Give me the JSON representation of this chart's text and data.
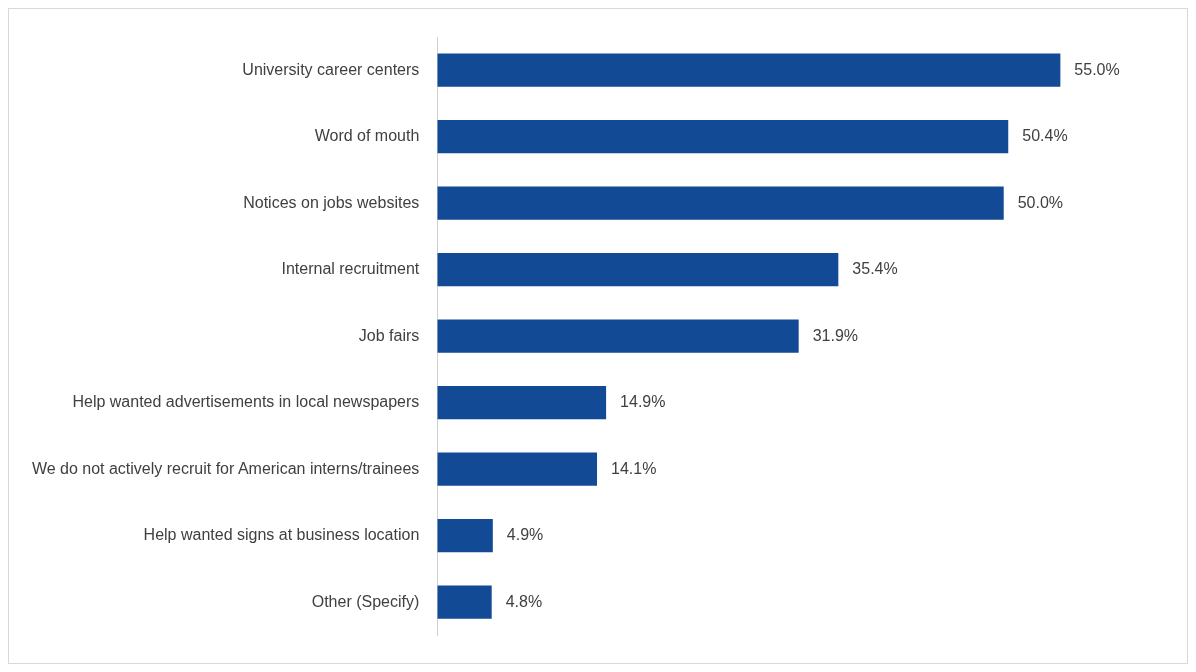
{
  "chart_data": {
    "type": "bar",
    "orientation": "horizontal",
    "categories": [
      "University career centers",
      "Word of mouth",
      "Notices on jobs websites",
      "Internal recruitment",
      "Job fairs",
      "Help wanted advertisements in local newspapers",
      "We do not actively recruit for American interns/trainees",
      "Help wanted signs at business location",
      "Other (Specify)"
    ],
    "values": [
      55.0,
      50.4,
      50.0,
      35.4,
      31.9,
      14.9,
      14.1,
      4.9,
      4.8
    ],
    "value_labels": [
      "55.0%",
      "50.4%",
      "50.0%",
      "35.4%",
      "31.9%",
      "14.9%",
      "14.1%",
      "4.9%",
      "4.8%"
    ],
    "color": "#134a96"
  }
}
